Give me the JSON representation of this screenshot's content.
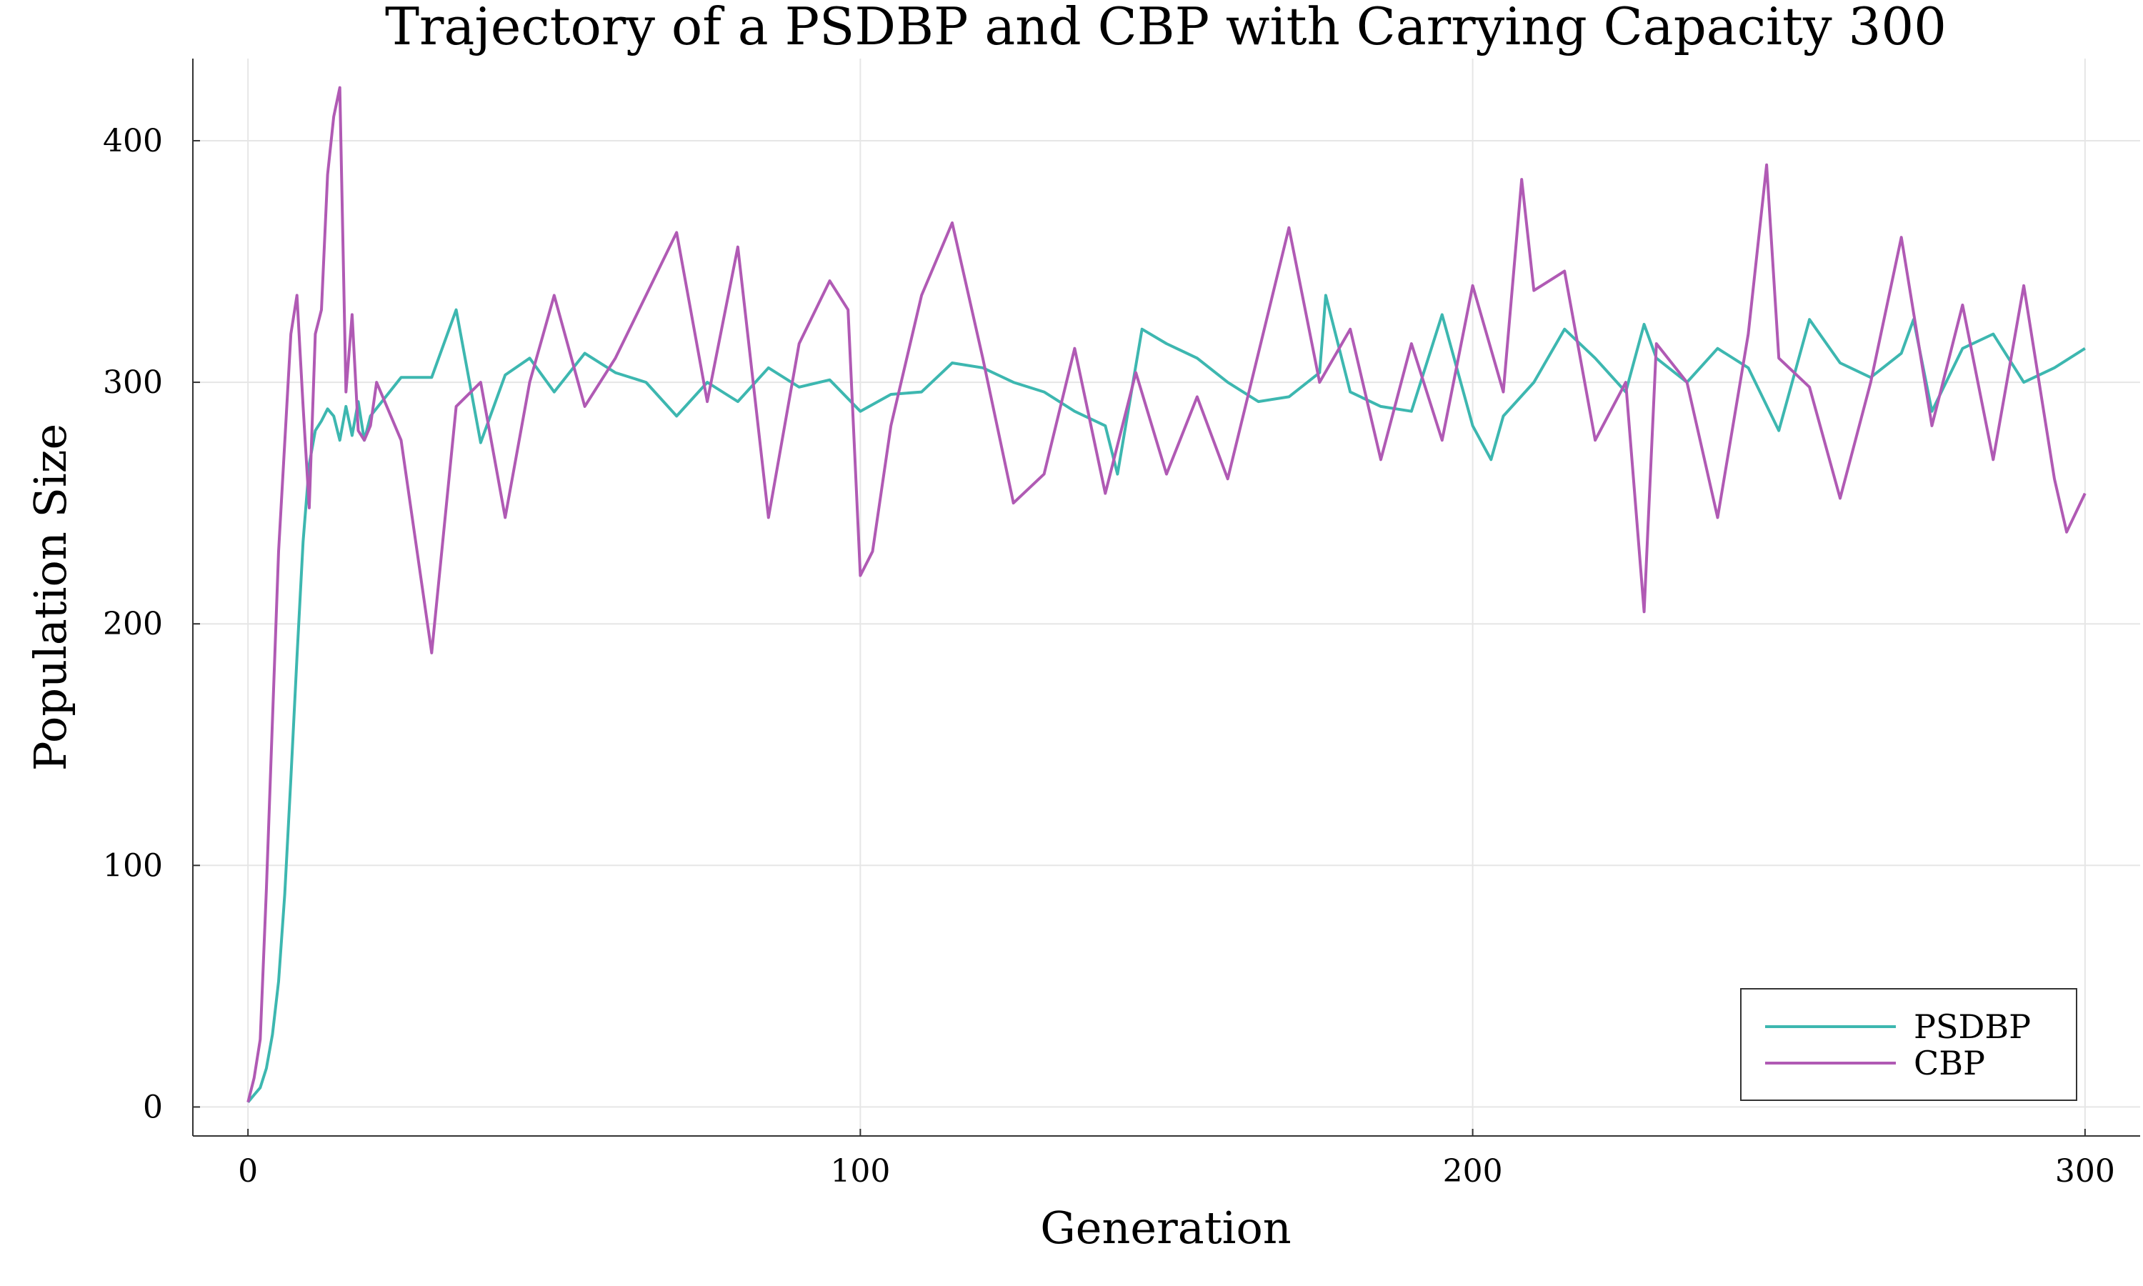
{
  "chart_data": {
    "type": "line",
    "title": "Trajectory of a PSDBP and CBP with Carrying Capacity 300",
    "xlabel": "Generation",
    "ylabel": "Population Size",
    "xlim": [
      -9,
      309
    ],
    "ylim": [
      -12,
      434
    ],
    "xticks": [
      0,
      100,
      200,
      300
    ],
    "yticks": [
      0,
      100,
      200,
      300,
      400
    ],
    "x_tick_labels": [
      "0",
      "100",
      "200",
      "300"
    ],
    "y_tick_labels": [
      "0",
      "100",
      "200",
      "300",
      "400"
    ],
    "grid": true,
    "legend_position": "bottom-right",
    "series": [
      {
        "name": "PSDBP",
        "color": "#3db7b0",
        "x": [
          0,
          1,
          2,
          3,
          4,
          5,
          6,
          7,
          8,
          9,
          10,
          11,
          12,
          13,
          14,
          15,
          16,
          17,
          18,
          19,
          20,
          25,
          30,
          34,
          38,
          42,
          46,
          50,
          55,
          60,
          65,
          70,
          75,
          80,
          85,
          90,
          95,
          100,
          105,
          110,
          115,
          120,
          125,
          130,
          135,
          140,
          142,
          146,
          150,
          155,
          160,
          165,
          170,
          175,
          176,
          180,
          185,
          190,
          195,
          200,
          203,
          205,
          210,
          215,
          220,
          225,
          228,
          230,
          235,
          240,
          245,
          250,
          255,
          260,
          265,
          270,
          272,
          275,
          280,
          285,
          290,
          295,
          300
        ],
        "values": [
          2,
          5,
          8,
          16,
          30,
          52,
          88,
          136,
          186,
          234,
          266,
          280,
          284,
          289,
          286,
          276,
          290,
          278,
          292,
          276,
          286,
          302,
          302,
          330,
          275,
          303,
          310,
          296,
          312,
          304,
          300,
          286,
          300,
          292,
          306,
          298,
          301,
          288,
          295,
          296,
          308,
          306,
          300,
          296,
          288,
          282,
          262,
          322,
          316,
          310,
          300,
          292,
          294,
          304,
          336,
          296,
          290,
          288,
          328,
          282,
          268,
          286,
          300,
          322,
          310,
          296,
          324,
          310,
          300,
          314,
          306,
          280,
          326,
          308,
          302,
          312,
          326,
          288,
          314,
          320,
          300,
          306,
          314
        ]
      },
      {
        "name": "CBP",
        "color": "#b05ab4",
        "x": [
          0,
          1,
          2,
          3,
          4,
          5,
          6,
          7,
          8,
          9,
          10,
          11,
          12,
          13,
          14,
          15,
          16,
          17,
          18,
          19,
          20,
          21,
          25,
          30,
          34,
          38,
          42,
          46,
          50,
          55,
          60,
          65,
          70,
          75,
          80,
          85,
          90,
          95,
          98,
          100,
          102,
          105,
          110,
          115,
          120,
          125,
          130,
          135,
          140,
          145,
          150,
          155,
          160,
          165,
          170,
          175,
          180,
          185,
          190,
          195,
          200,
          205,
          208,
          210,
          215,
          220,
          225,
          228,
          230,
          235,
          240,
          245,
          248,
          250,
          255,
          260,
          265,
          270,
          275,
          280,
          285,
          290,
          295,
          297,
          300
        ],
        "values": [
          2,
          12,
          28,
          90,
          160,
          230,
          275,
          320,
          336,
          290,
          248,
          320,
          330,
          386,
          410,
          422,
          296,
          328,
          280,
          276,
          282,
          300,
          276,
          188,
          290,
          300,
          244,
          300,
          336,
          290,
          310,
          336,
          362,
          292,
          356,
          244,
          316,
          342,
          330,
          220,
          230,
          282,
          336,
          366,
          310,
          250,
          262,
          314,
          254,
          304,
          262,
          294,
          260,
          312,
          364,
          300,
          322,
          268,
          316,
          276,
          340,
          296,
          384,
          338,
          346,
          276,
          300,
          205,
          316,
          300,
          244,
          320,
          390,
          310,
          298,
          252,
          300,
          360,
          282,
          332,
          268,
          340,
          260,
          238,
          254
        ]
      }
    ]
  }
}
